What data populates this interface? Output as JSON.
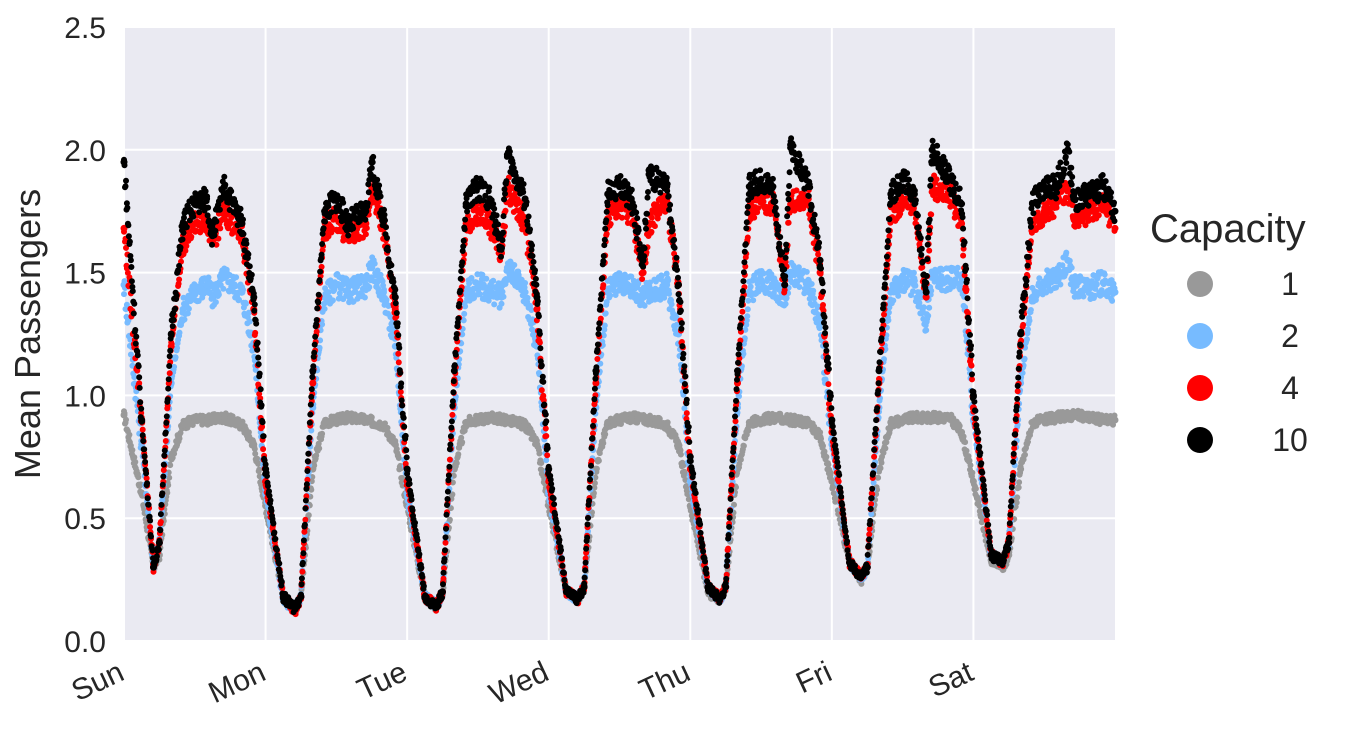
{
  "chart_data": {
    "type": "scatter",
    "title": "",
    "xlabel": "",
    "ylabel": "Mean Passengers",
    "ylim": [
      0,
      2.5
    ],
    "yticks": [
      "0.0",
      "0.5",
      "1.0",
      "1.5",
      "2.0",
      "2.5"
    ],
    "xticks": [
      "Sun",
      "Mon",
      "Tue",
      "Wed",
      "Thu",
      "Fri",
      "Sat"
    ],
    "grid": true,
    "legend": {
      "title": "Capacity",
      "placement": "right"
    },
    "x_unit": "hour of week",
    "xlim": [
      0,
      168
    ],
    "series": [
      {
        "name": "1",
        "color": "#999999",
        "x": [
          0,
          3,
          5,
          6,
          8,
          10,
          12,
          14,
          17,
          20,
          22,
          24,
          27,
          29,
          30,
          32,
          34,
          36,
          38,
          41,
          44,
          46,
          48,
          51,
          53,
          54,
          56,
          58,
          60,
          62,
          65,
          68,
          70,
          72,
          75,
          77,
          78,
          80,
          82,
          84,
          86,
          89,
          92,
          94,
          96,
          99,
          101,
          102,
          104,
          106,
          108,
          110,
          113,
          116,
          118,
          120,
          123,
          125,
          126,
          128,
          130,
          132,
          134,
          137,
          140,
          142,
          144,
          147,
          149,
          150,
          152,
          154,
          156,
          158,
          161,
          164,
          166,
          168
        ],
        "values": [
          0.92,
          0.6,
          0.3,
          0.35,
          0.75,
          0.88,
          0.9,
          0.9,
          0.91,
          0.88,
          0.8,
          0.55,
          0.18,
          0.13,
          0.18,
          0.7,
          0.89,
          0.9,
          0.91,
          0.9,
          0.88,
          0.8,
          0.55,
          0.18,
          0.14,
          0.19,
          0.7,
          0.89,
          0.9,
          0.91,
          0.9,
          0.88,
          0.8,
          0.55,
          0.2,
          0.17,
          0.22,
          0.7,
          0.89,
          0.9,
          0.91,
          0.9,
          0.88,
          0.8,
          0.55,
          0.2,
          0.17,
          0.22,
          0.7,
          0.89,
          0.9,
          0.91,
          0.9,
          0.89,
          0.83,
          0.65,
          0.32,
          0.25,
          0.3,
          0.7,
          0.89,
          0.9,
          0.91,
          0.91,
          0.91,
          0.85,
          0.65,
          0.33,
          0.3,
          0.35,
          0.7,
          0.89,
          0.9,
          0.91,
          0.92,
          0.91,
          0.9,
          0.9
        ]
      },
      {
        "name": "2",
        "color": "#77BBFF",
        "x": [
          0,
          3,
          5,
          6,
          8,
          10,
          12,
          14,
          15,
          17,
          20,
          22,
          24,
          27,
          29,
          30,
          32,
          34,
          36,
          38,
          41,
          42,
          44,
          46,
          48,
          51,
          53,
          54,
          56,
          58,
          60,
          62,
          64,
          65,
          68,
          70,
          72,
          75,
          77,
          78,
          80,
          82,
          84,
          86,
          88,
          89,
          92,
          94,
          96,
          99,
          101,
          102,
          104,
          106,
          108,
          110,
          112,
          113,
          116,
          118,
          120,
          123,
          125,
          126,
          128,
          130,
          132,
          134,
          136,
          137,
          140,
          142,
          144,
          147,
          149,
          150,
          152,
          154,
          156,
          158,
          160,
          161,
          164,
          166,
          168
        ],
        "values": [
          1.45,
          0.8,
          0.3,
          0.4,
          1.05,
          1.35,
          1.42,
          1.45,
          1.4,
          1.48,
          1.42,
          1.2,
          0.6,
          0.17,
          0.13,
          0.18,
          0.95,
          1.4,
          1.45,
          1.42,
          1.45,
          1.52,
          1.42,
          1.2,
          0.6,
          0.18,
          0.14,
          0.2,
          0.95,
          1.42,
          1.45,
          1.43,
          1.4,
          1.52,
          1.42,
          1.2,
          0.6,
          0.2,
          0.17,
          0.22,
          0.95,
          1.42,
          1.45,
          1.44,
          1.4,
          1.42,
          1.45,
          1.25,
          0.65,
          0.22,
          0.17,
          0.22,
          0.95,
          1.42,
          1.47,
          1.45,
          1.4,
          1.5,
          1.45,
          1.3,
          0.8,
          0.32,
          0.26,
          0.3,
          0.95,
          1.42,
          1.47,
          1.45,
          1.3,
          1.48,
          1.47,
          1.48,
          0.9,
          0.35,
          0.32,
          0.4,
          1.05,
          1.4,
          1.46,
          1.47,
          1.55,
          1.45,
          1.44,
          1.46,
          1.42
        ]
      },
      {
        "name": "4",
        "color": "#FF0000",
        "x": [
          0,
          3,
          5,
          6,
          8,
          10,
          12,
          14,
          15,
          17,
          20,
          22,
          24,
          27,
          29,
          30,
          32,
          34,
          36,
          38,
          41,
          42,
          44,
          46,
          48,
          51,
          53,
          54,
          56,
          58,
          60,
          62,
          64,
          65,
          68,
          70,
          72,
          75,
          77,
          78,
          80,
          82,
          84,
          86,
          88,
          89,
          92,
          94,
          96,
          99,
          101,
          102,
          104,
          106,
          108,
          110,
          112,
          113,
          116,
          118,
          120,
          123,
          125,
          126,
          128,
          130,
          132,
          134,
          136,
          137,
          140,
          142,
          144,
          147,
          149,
          150,
          152,
          154,
          156,
          158,
          160,
          161,
          164,
          166,
          168
        ],
        "values": [
          1.68,
          0.9,
          0.3,
          0.4,
          1.2,
          1.62,
          1.7,
          1.72,
          1.62,
          1.75,
          1.65,
          1.35,
          0.65,
          0.18,
          0.12,
          0.18,
          1.05,
          1.68,
          1.72,
          1.65,
          1.7,
          1.85,
          1.68,
          1.35,
          0.65,
          0.18,
          0.14,
          0.2,
          1.05,
          1.7,
          1.75,
          1.7,
          1.58,
          1.85,
          1.7,
          1.35,
          0.65,
          0.2,
          0.17,
          0.22,
          1.05,
          1.72,
          1.78,
          1.74,
          1.5,
          1.7,
          1.8,
          1.45,
          0.7,
          0.22,
          0.17,
          0.22,
          1.05,
          1.75,
          1.8,
          1.78,
          1.45,
          1.8,
          1.8,
          1.5,
          0.85,
          0.32,
          0.26,
          0.3,
          1.05,
          1.72,
          1.8,
          1.78,
          1.4,
          1.85,
          1.82,
          1.7,
          0.95,
          0.35,
          0.32,
          0.4,
          1.2,
          1.7,
          1.75,
          1.78,
          1.85,
          1.72,
          1.75,
          1.78,
          1.68
        ]
      },
      {
        "name": "10",
        "color": "#000000",
        "x": [
          0,
          3,
          5,
          6,
          8,
          10,
          12,
          14,
          15,
          17,
          20,
          22,
          24,
          27,
          29,
          30,
          32,
          34,
          36,
          38,
          41,
          42,
          44,
          46,
          48,
          51,
          53,
          54,
          56,
          58,
          60,
          62,
          64,
          65,
          68,
          70,
          72,
          75,
          77,
          78,
          80,
          82,
          84,
          86,
          88,
          89,
          92,
          94,
          96,
          99,
          101,
          102,
          104,
          106,
          108,
          110,
          112,
          113,
          116,
          118,
          120,
          123,
          125,
          126,
          128,
          130,
          132,
          134,
          136,
          137,
          140,
          142,
          144,
          147,
          149,
          150,
          152,
          154,
          156,
          158,
          160,
          161,
          164,
          166,
          168
        ],
        "values": [
          1.95,
          0.9,
          0.3,
          0.4,
          1.25,
          1.7,
          1.78,
          1.8,
          1.65,
          1.85,
          1.7,
          1.4,
          0.7,
          0.18,
          0.13,
          0.18,
          1.1,
          1.75,
          1.8,
          1.7,
          1.75,
          1.95,
          1.72,
          1.4,
          0.7,
          0.18,
          0.14,
          0.2,
          1.1,
          1.78,
          1.85,
          1.8,
          1.6,
          1.98,
          1.8,
          1.4,
          0.7,
          0.2,
          0.17,
          0.22,
          1.1,
          1.82,
          1.85,
          1.8,
          1.55,
          1.9,
          1.85,
          1.45,
          0.75,
          0.22,
          0.17,
          0.22,
          1.1,
          1.85,
          1.88,
          1.85,
          1.45,
          2.02,
          1.85,
          1.55,
          0.9,
          0.32,
          0.26,
          0.3,
          1.1,
          1.82,
          1.88,
          1.82,
          1.42,
          2.0,
          1.88,
          1.78,
          1.0,
          0.35,
          0.32,
          0.4,
          1.25,
          1.78,
          1.85,
          1.85,
          2.0,
          1.8,
          1.82,
          1.85,
          1.75
        ]
      }
    ]
  }
}
